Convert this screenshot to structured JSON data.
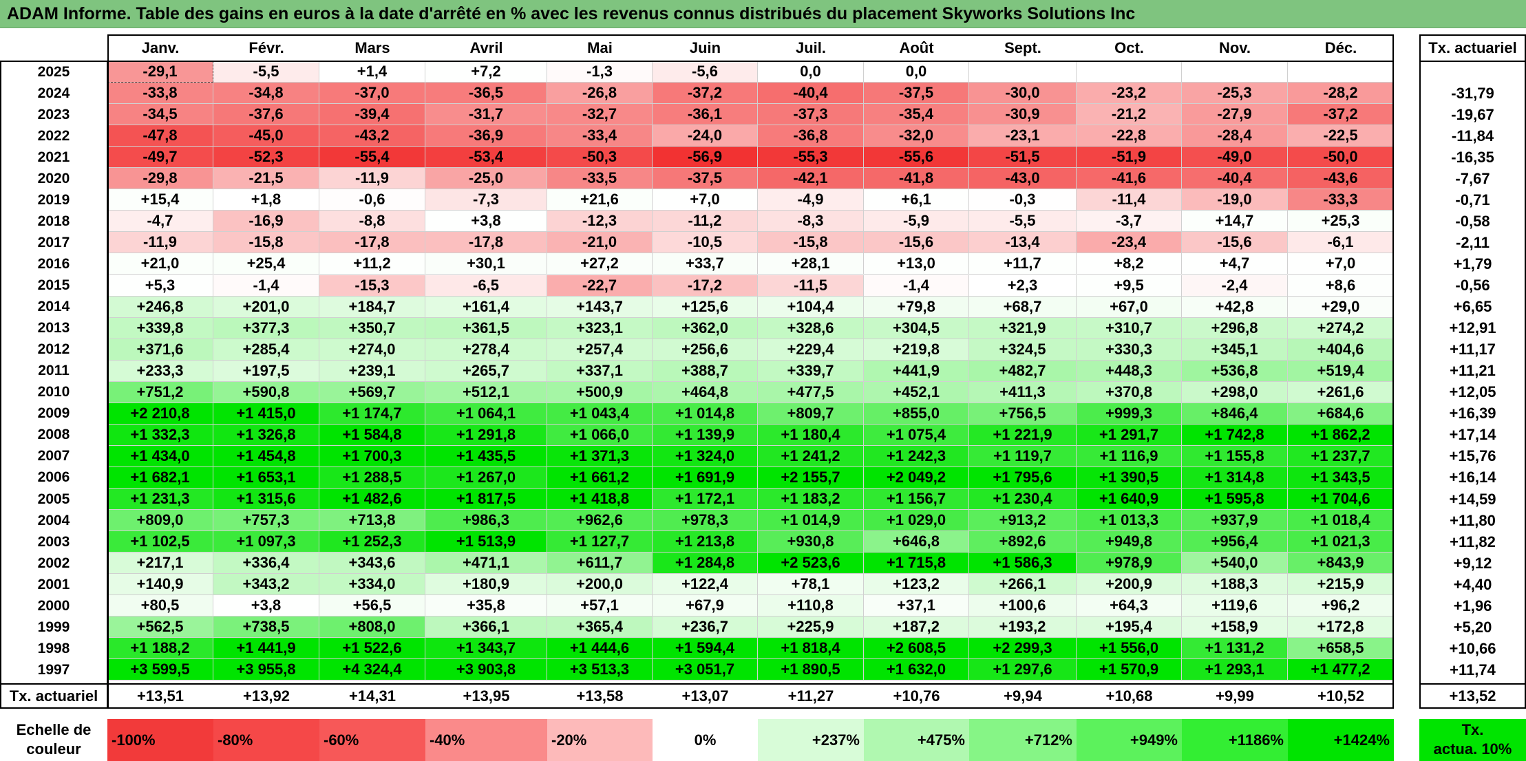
{
  "title": "ADAM Informe. Table des gains en euros à la date d'arrêté en % avec les revenus connus distribués du placement Skyworks Solutions Inc",
  "months": [
    "Janv.",
    "Févr.",
    "Mars",
    "Avril",
    "Mai",
    "Juin",
    "Juil.",
    "Août",
    "Sept.",
    "Oct.",
    "Nov.",
    "Déc."
  ],
  "annual_header": "Tx. actuariel",
  "rows": [
    {
      "year": "2025",
      "values": [
        "-29,1",
        "-5,5",
        "+1,4",
        "+7,2",
        "-1,3",
        "-5,6",
        "0,0",
        "0,0",
        "",
        "",
        "",
        ""
      ],
      "annual": ""
    },
    {
      "year": "2024",
      "values": [
        "-33,8",
        "-34,8",
        "-37,0",
        "-36,5",
        "-26,8",
        "-37,2",
        "-40,4",
        "-37,5",
        "-30,0",
        "-23,2",
        "-25,3",
        "-28,2"
      ],
      "annual": "-31,79"
    },
    {
      "year": "2023",
      "values": [
        "-34,5",
        "-37,6",
        "-39,4",
        "-31,7",
        "-32,7",
        "-36,1",
        "-37,3",
        "-35,4",
        "-30,9",
        "-21,2",
        "-27,9",
        "-37,2"
      ],
      "annual": "-19,67"
    },
    {
      "year": "2022",
      "values": [
        "-47,8",
        "-45,0",
        "-43,2",
        "-36,9",
        "-33,4",
        "-24,0",
        "-36,8",
        "-32,0",
        "-23,1",
        "-22,8",
        "-28,4",
        "-22,5"
      ],
      "annual": "-11,84"
    },
    {
      "year": "2021",
      "values": [
        "-49,7",
        "-52,3",
        "-55,4",
        "-53,4",
        "-50,3",
        "-56,9",
        "-55,3",
        "-55,6",
        "-51,5",
        "-51,9",
        "-49,0",
        "-50,0"
      ],
      "annual": "-16,35"
    },
    {
      "year": "2020",
      "values": [
        "-29,8",
        "-21,5",
        "-11,9",
        "-25,0",
        "-33,5",
        "-37,5",
        "-42,1",
        "-41,8",
        "-43,0",
        "-41,6",
        "-40,4",
        "-43,6"
      ],
      "annual": "-7,67"
    },
    {
      "year": "2019",
      "values": [
        "+15,4",
        "+1,8",
        "-0,6",
        "-7,3",
        "+21,6",
        "+7,0",
        "-4,9",
        "+6,1",
        "-0,3",
        "-11,4",
        "-19,0",
        "-33,3"
      ],
      "annual": "-0,71"
    },
    {
      "year": "2018",
      "values": [
        "-4,7",
        "-16,9",
        "-8,8",
        "+3,8",
        "-12,3",
        "-11,2",
        "-8,3",
        "-5,9",
        "-5,5",
        "-3,7",
        "+14,7",
        "+25,3"
      ],
      "annual": "-0,58"
    },
    {
      "year": "2017",
      "values": [
        "-11,9",
        "-15,8",
        "-17,8",
        "-17,8",
        "-21,0",
        "-10,5",
        "-15,8",
        "-15,6",
        "-13,4",
        "-23,4",
        "-15,6",
        "-6,1"
      ],
      "annual": "-2,11"
    },
    {
      "year": "2016",
      "values": [
        "+21,0",
        "+25,4",
        "+11,2",
        "+30,1",
        "+27,2",
        "+33,7",
        "+28,1",
        "+13,0",
        "+11,7",
        "+8,2",
        "+4,7",
        "+7,0"
      ],
      "annual": "+1,79"
    },
    {
      "year": "2015",
      "values": [
        "+5,3",
        "-1,4",
        "-15,3",
        "-6,5",
        "-22,7",
        "-17,2",
        "-11,5",
        "-1,4",
        "+2,3",
        "+9,5",
        "-2,4",
        "+8,6"
      ],
      "annual": "-0,56"
    },
    {
      "year": "2014",
      "values": [
        "+246,8",
        "+201,0",
        "+184,7",
        "+161,4",
        "+143,7",
        "+125,6",
        "+104,4",
        "+79,8",
        "+68,7",
        "+67,0",
        "+42,8",
        "+29,0"
      ],
      "annual": "+6,65"
    },
    {
      "year": "2013",
      "values": [
        "+339,8",
        "+377,3",
        "+350,7",
        "+361,5",
        "+323,1",
        "+362,0",
        "+328,6",
        "+304,5",
        "+321,9",
        "+310,7",
        "+296,8",
        "+274,2"
      ],
      "annual": "+12,91"
    },
    {
      "year": "2012",
      "values": [
        "+371,6",
        "+285,4",
        "+274,0",
        "+278,4",
        "+257,4",
        "+256,6",
        "+229,4",
        "+219,8",
        "+324,5",
        "+330,3",
        "+345,1",
        "+404,6"
      ],
      "annual": "+11,17"
    },
    {
      "year": "2011",
      "values": [
        "+233,3",
        "+197,5",
        "+239,1",
        "+265,7",
        "+337,1",
        "+388,7",
        "+339,7",
        "+441,9",
        "+482,7",
        "+448,3",
        "+536,8",
        "+519,4"
      ],
      "annual": "+11,21"
    },
    {
      "year": "2010",
      "values": [
        "+751,2",
        "+590,8",
        "+569,7",
        "+512,1",
        "+500,9",
        "+464,8",
        "+477,5",
        "+452,1",
        "+411,3",
        "+370,8",
        "+298,0",
        "+261,6"
      ],
      "annual": "+12,05"
    },
    {
      "year": "2009",
      "values": [
        "+2 210,8",
        "+1 415,0",
        "+1 174,7",
        "+1 064,1",
        "+1 043,4",
        "+1 014,8",
        "+809,7",
        "+855,0",
        "+756,5",
        "+999,3",
        "+846,4",
        "+684,6"
      ],
      "annual": "+16,39"
    },
    {
      "year": "2008",
      "values": [
        "+1 332,3",
        "+1 326,8",
        "+1 584,8",
        "+1 291,8",
        "+1 066,0",
        "+1 139,9",
        "+1 180,4",
        "+1 075,4",
        "+1 221,9",
        "+1 291,7",
        "+1 742,8",
        "+1 862,2"
      ],
      "annual": "+17,14"
    },
    {
      "year": "2007",
      "values": [
        "+1 434,0",
        "+1 454,8",
        "+1 700,3",
        "+1 435,5",
        "+1 371,3",
        "+1 324,0",
        "+1 241,2",
        "+1 242,3",
        "+1 119,7",
        "+1 116,9",
        "+1 155,8",
        "+1 237,7"
      ],
      "annual": "+15,76"
    },
    {
      "year": "2006",
      "values": [
        "+1 682,1",
        "+1 653,1",
        "+1 288,5",
        "+1 267,0",
        "+1 661,2",
        "+1 691,9",
        "+2 155,7",
        "+2 049,2",
        "+1 795,6",
        "+1 390,5",
        "+1 314,8",
        "+1 343,5"
      ],
      "annual": "+16,14"
    },
    {
      "year": "2005",
      "values": [
        "+1 231,3",
        "+1 315,6",
        "+1 482,6",
        "+1 817,5",
        "+1 418,8",
        "+1 172,1",
        "+1 183,2",
        "+1 156,7",
        "+1 230,4",
        "+1 640,9",
        "+1 595,8",
        "+1 704,6"
      ],
      "annual": "+14,59"
    },
    {
      "year": "2004",
      "values": [
        "+809,0",
        "+757,3",
        "+713,8",
        "+986,3",
        "+962,6",
        "+978,3",
        "+1 014,9",
        "+1 029,0",
        "+913,2",
        "+1 013,3",
        "+937,9",
        "+1 018,4"
      ],
      "annual": "+11,80"
    },
    {
      "year": "2003",
      "values": [
        "+1 102,5",
        "+1 097,3",
        "+1 252,3",
        "+1 513,9",
        "+1 127,7",
        "+1 213,8",
        "+930,8",
        "+646,8",
        "+892,6",
        "+949,8",
        "+956,4",
        "+1 021,3"
      ],
      "annual": "+11,82"
    },
    {
      "year": "2002",
      "values": [
        "+217,1",
        "+336,4",
        "+343,6",
        "+471,1",
        "+611,7",
        "+1 284,8",
        "+2 523,6",
        "+1 715,8",
        "+1 586,3",
        "+978,9",
        "+540,0",
        "+843,9"
      ],
      "annual": "+9,12"
    },
    {
      "year": "2001",
      "values": [
        "+140,9",
        "+343,2",
        "+334,0",
        "+180,9",
        "+200,0",
        "+122,4",
        "+78,1",
        "+123,2",
        "+266,1",
        "+200,9",
        "+188,3",
        "+215,9"
      ],
      "annual": "+4,40"
    },
    {
      "year": "2000",
      "values": [
        "+80,5",
        "+3,8",
        "+56,5",
        "+35,8",
        "+57,1",
        "+67,9",
        "+110,8",
        "+37,1",
        "+100,6",
        "+64,3",
        "+119,6",
        "+96,2"
      ],
      "annual": "+1,96"
    },
    {
      "year": "1999",
      "values": [
        "+562,5",
        "+738,5",
        "+808,0",
        "+366,1",
        "+365,4",
        "+236,7",
        "+225,9",
        "+187,2",
        "+193,2",
        "+195,4",
        "+158,9",
        "+172,8"
      ],
      "annual": "+5,20"
    },
    {
      "year": "1998",
      "values": [
        "+1 188,2",
        "+1 441,9",
        "+1 522,6",
        "+1 343,7",
        "+1 444,6",
        "+1 594,4",
        "+1 818,4",
        "+2 608,5",
        "+2 299,3",
        "+1 556,0",
        "+1 131,2",
        "+658,5"
      ],
      "annual": "+10,66"
    },
    {
      "year": "1997",
      "values": [
        "+3 599,5",
        "+3 955,8",
        "+4 324,4",
        "+3 903,8",
        "+3 513,3",
        "+3 051,7",
        "+1 890,5",
        "+1 632,0",
        "+1 297,6",
        "+1 570,9",
        "+1 293,1",
        "+1 477,2"
      ],
      "annual": "+11,74"
    }
  ],
  "footer": {
    "label": "Tx. actuariel",
    "values": [
      "+13,51",
      "+13,92",
      "+14,31",
      "+13,95",
      "+13,58",
      "+13,07",
      "+11,27",
      "+10,76",
      "+9,94",
      "+10,68",
      "+9,99",
      "+10,52"
    ],
    "annual": "+13,52"
  },
  "scale": {
    "label_line1": "Echelle de",
    "label_line2": "couleur",
    "items": [
      {
        "label": "-100%",
        "color": "#f23a3a",
        "align": "left"
      },
      {
        "label": "-80%",
        "color": "#f54848",
        "align": "left"
      },
      {
        "label": "-60%",
        "color": "#f75858",
        "align": "left"
      },
      {
        "label": "-40%",
        "color": "#fa8a8a",
        "align": "left"
      },
      {
        "label": "-20%",
        "color": "#fdbaba",
        "align": "left"
      },
      {
        "label": "0%",
        "color": "#ffffff",
        "align": "center"
      },
      {
        "label": "+237%",
        "color": "#d8fcd8",
        "align": "right"
      },
      {
        "label": "+475%",
        "color": "#b0f8b0",
        "align": "right"
      },
      {
        "label": "+712%",
        "color": "#86f586",
        "align": "right"
      },
      {
        "label": "+949%",
        "color": "#5cf25c",
        "align": "right"
      },
      {
        "label": "+1186%",
        "color": "#33ee33",
        "align": "right"
      },
      {
        "label": "+1424%",
        "color": "#00e400",
        "align": "right"
      }
    ],
    "annual_line1": "Tx.",
    "annual_line2": "actua. 10%",
    "annual_color": "#00e400"
  }
}
